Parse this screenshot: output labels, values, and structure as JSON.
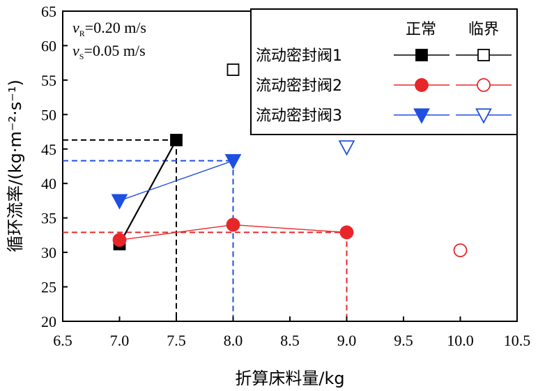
{
  "chart_data": {
    "type": "scatter",
    "xlabel": "折算床料量/kg",
    "ylabel": "循环流率/(kg·m⁻²·s⁻¹)",
    "xlim": [
      6.5,
      10.5
    ],
    "ylim": [
      20,
      65
    ],
    "xticks": [
      "6.5",
      "7.0",
      "7.5",
      "8.0",
      "8.5",
      "9.0",
      "9.5",
      "10.0",
      "10.5"
    ],
    "yticks": [
      "20",
      "25",
      "30",
      "35",
      "40",
      "45",
      "50",
      "55",
      "60",
      "65"
    ],
    "grid": false,
    "annotations": {
      "vR": {
        "var": "v",
        "sub": "R",
        "text": "=0.20 m/s"
      },
      "vS": {
        "var": "v",
        "sub": "S",
        "text": "=0.05 m/s"
      }
    },
    "legend": {
      "placement": "top-right",
      "header_normal": "正常",
      "header_critical": "临界",
      "entries": [
        "流动密封阀1",
        "流动密封阀2",
        "流动密封阀3"
      ]
    },
    "series": [
      {
        "name": "流动密封阀1",
        "color": "#000000",
        "marker": "square",
        "normal": [
          [
            7.0,
            31.2
          ],
          [
            7.5,
            46.3
          ]
        ],
        "critical": [
          [
            8.0,
            56.5
          ]
        ],
        "refline": [
          7.5,
          46.3
        ]
      },
      {
        "name": "流动密封阀2",
        "color": "#e8262a",
        "marker": "circle",
        "normal": [
          [
            7.0,
            31.8
          ],
          [
            8.0,
            34.0
          ],
          [
            9.0,
            32.9
          ]
        ],
        "critical": [
          [
            10.0,
            30.3
          ]
        ],
        "refline": [
          9.0,
          32.9
        ]
      },
      {
        "name": "流动密封阀3",
        "color": "#1f4fe0",
        "marker": "triangle",
        "normal": [
          [
            7.0,
            37.5
          ],
          [
            8.0,
            43.3
          ]
        ],
        "critical": [
          [
            9.0,
            45.3
          ]
        ],
        "refline": [
          8.0,
          43.3
        ]
      }
    ]
  }
}
